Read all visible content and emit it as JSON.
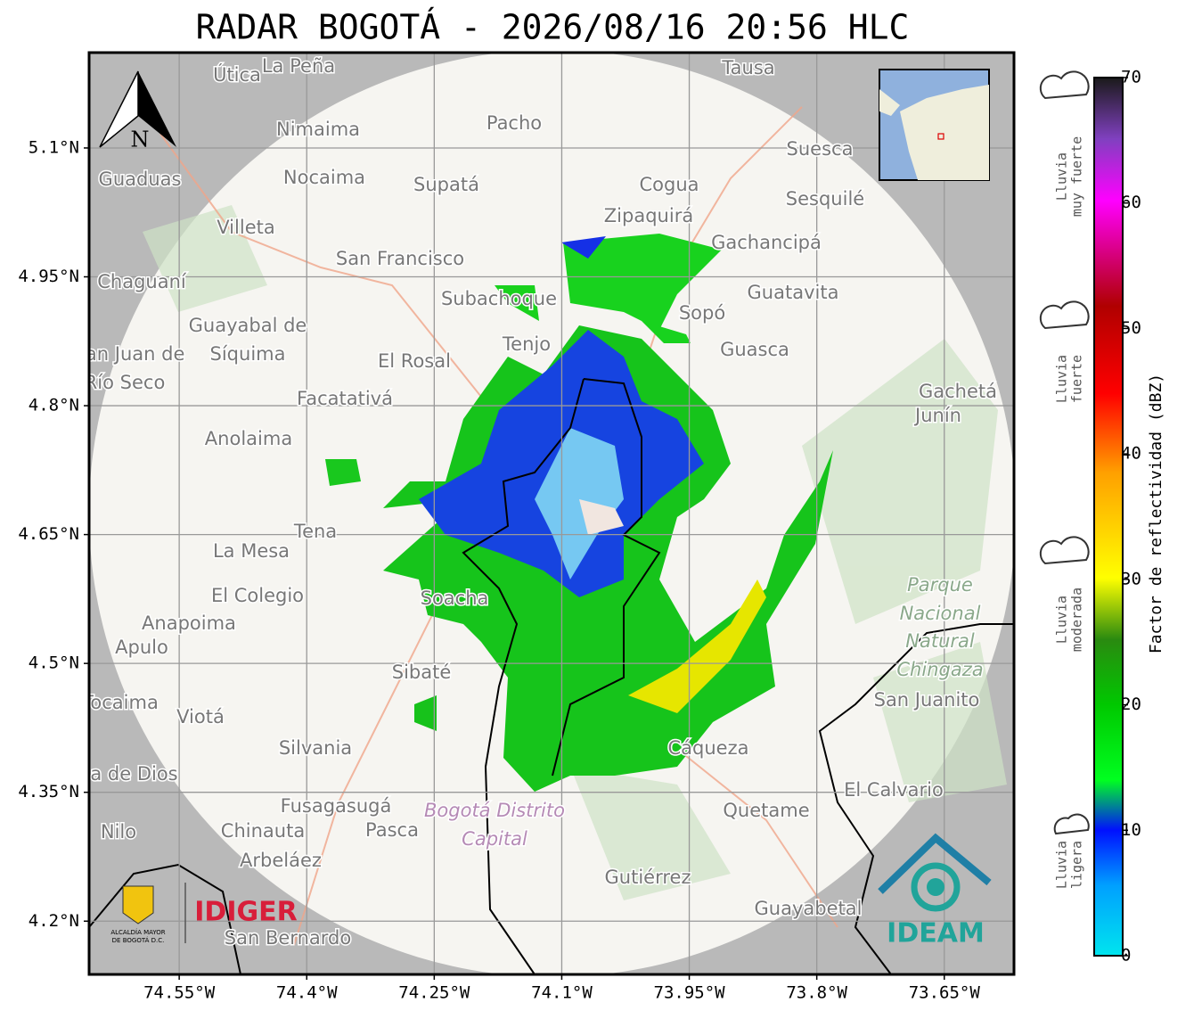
{
  "title": "RADAR BOGOTÁ - 2026/08/16 20:56 HLC",
  "map": {
    "xlim": [
      -74.656,
      -73.568
    ],
    "ylim": [
      4.138,
      5.211
    ],
    "xticks": [
      {
        "value": -74.55,
        "label": "74.55°W"
      },
      {
        "value": -74.4,
        "label": "74.4°W"
      },
      {
        "value": -74.25,
        "label": "74.25°W"
      },
      {
        "value": -74.1,
        "label": "74.1°W"
      },
      {
        "value": -73.95,
        "label": "73.95°W"
      },
      {
        "value": -73.8,
        "label": "73.8°W"
      },
      {
        "value": -73.65,
        "label": "73.65°W"
      }
    ],
    "yticks": [
      {
        "value": 5.1,
        "label": "5.1°N"
      },
      {
        "value": 4.95,
        "label": "4.95°N"
      },
      {
        "value": 4.8,
        "label": "4.8°N"
      },
      {
        "value": 4.65,
        "label": "4.65°N"
      },
      {
        "value": 4.5,
        "label": "4.5°N"
      },
      {
        "value": 4.35,
        "label": "4.35°N"
      },
      {
        "value": 4.2,
        "label": "4.2°N"
      }
    ],
    "grid": true,
    "north_arrow": "N",
    "places": [
      "Útica",
      "La Peña",
      "Tausa",
      "Pacho",
      "Nimaima",
      "Guaduas",
      "Nocaima",
      "Supatá",
      "Cogua",
      "Suesca",
      "Sesquilé",
      "Zipaquirá",
      "Villeta",
      "Gachancipá",
      "San Francisco",
      "Chaguaní",
      "Guatavita",
      "Subachoque",
      "Sopó",
      "Guayabal de",
      "Síquima",
      "Tenjo",
      "Guasca",
      "San Juan de",
      "Río Seco",
      "El Rosal",
      "Facatativá",
      "Gachetá",
      "Junín",
      "Anolaima",
      "Tena",
      "La Mesa",
      "El Colegio",
      "Soacha",
      "Parque",
      "Nacional",
      "Natural",
      "Chingaza",
      "Anapoima",
      "Apulo",
      "Sibaté",
      "San Juanito",
      "Tocaima",
      "Viotá",
      "Silvania",
      "Cáqueza",
      "Agua de Dios",
      "El Calvario",
      "Fusagasugá",
      "Quetame",
      "Nilo",
      "Chinauta",
      "Pasca",
      "Arbeláez",
      "Gutiérrez",
      "Guayabetal",
      "San Bernardo",
      "Bogotá Distrito",
      "Capital"
    ]
  },
  "logos": {
    "idiger": "IDIGER",
    "ideam": "IDEAM",
    "alcaldia": [
      "ALCALDÍA MAYOR",
      "DE BOGOTÁ D.C."
    ]
  },
  "colorbar": {
    "label": "Factor de reflectividad (dBZ)",
    "lim": [
      0,
      70
    ],
    "ticks": [
      0,
      10,
      20,
      30,
      40,
      50,
      60,
      70
    ],
    "categories": [
      [
        "Lluvia",
        "ligera"
      ],
      [
        "Lluvia",
        "moderada"
      ],
      [
        "Lluvia",
        "fuerte"
      ],
      [
        "Lluvia",
        "muy fuerte"
      ]
    ]
  }
}
